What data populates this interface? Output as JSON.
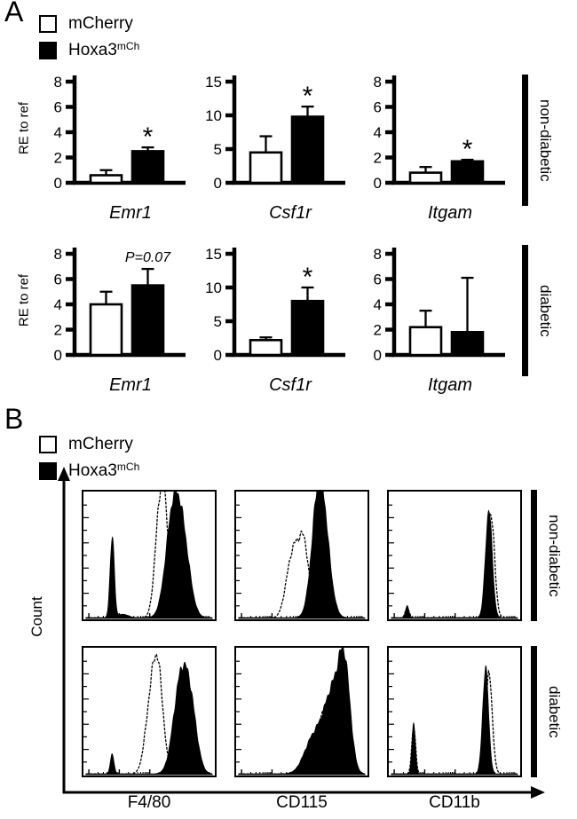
{
  "figure": {
    "panel_a_label": "A",
    "panel_b_label": "B",
    "legend": {
      "mcherry_label": "mCherry",
      "hoxa3_label_base": "Hoxa3",
      "hoxa3_label_sup": "mCh"
    },
    "bar_ylabel": "RE to ref",
    "hist_ylabel": "Count",
    "row_labels": {
      "top": "non-diabetic",
      "bottom": "diabetic"
    },
    "hist_xlabels": [
      "F4/80",
      "CD115",
      "CD11b"
    ],
    "colors": {
      "foreground": "#000000",
      "background": "#ffffff"
    }
  },
  "chart_data": [
    {
      "type": "bar",
      "panel": "A",
      "condition": "non-diabetic",
      "gene": "Emr1",
      "ylabel": "RE to ref",
      "ylim": [
        0,
        8
      ],
      "yticks": [
        0,
        2,
        4,
        6,
        8
      ],
      "series": [
        {
          "name": "mCherry",
          "value": 0.6,
          "error": 0.4
        },
        {
          "name": "Hoxa3mCh",
          "value": 2.5,
          "error": 0.3
        }
      ],
      "significance": "*"
    },
    {
      "type": "bar",
      "panel": "A",
      "condition": "non-diabetic",
      "gene": "Csf1r",
      "ylabel": "RE to ref",
      "ylim": [
        0,
        15
      ],
      "yticks": [
        0,
        5,
        10,
        15
      ],
      "series": [
        {
          "name": "mCherry",
          "value": 4.5,
          "error": 2.4
        },
        {
          "name": "Hoxa3mCh",
          "value": 9.8,
          "error": 1.5
        }
      ],
      "significance": "*"
    },
    {
      "type": "bar",
      "panel": "A",
      "condition": "non-diabetic",
      "gene": "Itgam",
      "ylabel": "RE to ref",
      "ylim": [
        0,
        8
      ],
      "yticks": [
        0,
        2,
        4,
        6,
        8
      ],
      "series": [
        {
          "name": "mCherry",
          "value": 0.8,
          "error": 0.45
        },
        {
          "name": "Hoxa3mCh",
          "value": 1.7,
          "error": 0.12
        }
      ],
      "significance": "*"
    },
    {
      "type": "bar",
      "panel": "A",
      "condition": "diabetic",
      "gene": "Emr1",
      "ylabel": "RE to ref",
      "ylim": [
        0,
        8
      ],
      "yticks": [
        0,
        2,
        4,
        6,
        8
      ],
      "series": [
        {
          "name": "mCherry",
          "value": 4.0,
          "error": 1.0
        },
        {
          "name": "Hoxa3mCh",
          "value": 5.5,
          "error": 1.3
        }
      ],
      "significance": "P=0.07"
    },
    {
      "type": "bar",
      "panel": "A",
      "condition": "diabetic",
      "gene": "Csf1r",
      "ylabel": "RE to ref",
      "ylim": [
        0,
        15
      ],
      "yticks": [
        0,
        5,
        10,
        15
      ],
      "series": [
        {
          "name": "mCherry",
          "value": 2.2,
          "error": 0.4
        },
        {
          "name": "Hoxa3mCh",
          "value": 8.0,
          "error": 2.0
        }
      ],
      "significance": "*"
    },
    {
      "type": "bar",
      "panel": "A",
      "condition": "diabetic",
      "gene": "Itgam",
      "ylabel": "RE to ref",
      "ylim": [
        0,
        8
      ],
      "yticks": [
        0,
        2,
        4,
        6,
        8
      ],
      "series": [
        {
          "name": "mCherry",
          "value": 2.2,
          "error": 1.3
        },
        {
          "name": "Hoxa3mCh",
          "value": 1.8,
          "error": 4.3
        }
      ],
      "significance": ""
    },
    {
      "type": "histogram",
      "panel": "B",
      "condition": "non-diabetic",
      "xlabel": "F4/80",
      "ylabel": "Count",
      "xscale": "log",
      "series": [
        {
          "name": "Hoxa3mCh",
          "style": "filled",
          "peaks": [
            {
              "x": 0.215,
              "h": 0.7,
              "w": 0.016
            },
            {
              "x": 0.3,
              "h": 0.03,
              "w": 0.04
            },
            {
              "x": 0.68,
              "h": 0.8,
              "w": 0.055
            },
            {
              "x": 0.76,
              "h": 0.6,
              "w": 0.055
            }
          ]
        },
        {
          "name": "mCherry",
          "style": "outline",
          "peaks": [
            {
              "x": 0.615,
              "h": 0.92,
              "w": 0.04
            },
            {
              "x": 0.57,
              "h": 0.45,
              "w": 0.035
            }
          ]
        }
      ]
    },
    {
      "type": "histogram",
      "panel": "B",
      "condition": "non-diabetic",
      "xlabel": "CD115",
      "ylabel": "Count",
      "xscale": "log",
      "series": [
        {
          "name": "Hoxa3mCh",
          "style": "filled",
          "peaks": [
            {
              "x": 0.625,
              "h": 0.93,
              "w": 0.05
            },
            {
              "x": 0.68,
              "h": 0.45,
              "w": 0.05
            }
          ]
        },
        {
          "name": "mCherry",
          "style": "outline",
          "peaks": [
            {
              "x": 0.46,
              "h": 0.5,
              "w": 0.045
            },
            {
              "x": 0.525,
              "h": 0.48,
              "w": 0.035
            },
            {
              "x": 0.4,
              "h": 0.25,
              "w": 0.04
            }
          ]
        }
      ]
    },
    {
      "type": "histogram",
      "panel": "B",
      "condition": "non-diabetic",
      "xlabel": "CD11b",
      "ylabel": "Count",
      "xscale": "log",
      "series": [
        {
          "name": "Hoxa3mCh",
          "style": "filled",
          "peaks": [
            {
              "x": 0.135,
              "h": 0.1,
              "w": 0.013
            },
            {
              "x": 0.765,
              "h": 0.92,
              "w": 0.026
            }
          ]
        },
        {
          "name": "mCherry",
          "style": "outline",
          "peaks": [
            {
              "x": 0.135,
              "h": 0.085,
              "w": 0.015
            },
            {
              "x": 0.78,
              "h": 0.9,
              "w": 0.028
            }
          ]
        }
      ]
    },
    {
      "type": "histogram",
      "panel": "B",
      "condition": "diabetic",
      "xlabel": "F4/80",
      "ylabel": "Count",
      "xscale": "log",
      "series": [
        {
          "name": "Hoxa3mCh",
          "style": "filled",
          "peaks": [
            {
              "x": 0.215,
              "h": 0.17,
              "w": 0.014
            },
            {
              "x": 0.74,
              "h": 0.74,
              "w": 0.055
            },
            {
              "x": 0.82,
              "h": 0.5,
              "w": 0.05
            }
          ]
        },
        {
          "name": "mCherry",
          "style": "outline",
          "peaks": [
            {
              "x": 0.565,
              "h": 0.9,
              "w": 0.042
            },
            {
              "x": 0.5,
              "h": 0.4,
              "w": 0.04
            }
          ]
        }
      ]
    },
    {
      "type": "histogram",
      "panel": "B",
      "condition": "diabetic",
      "xlabel": "CD115",
      "ylabel": "Count",
      "xscale": "log",
      "series": [
        {
          "name": "Hoxa3mCh",
          "style": "filled",
          "peaks": [
            {
              "x": 0.83,
              "h": 0.85,
              "w": 0.045
            },
            {
              "x": 0.74,
              "h": 0.6,
              "w": 0.06
            },
            {
              "x": 0.63,
              "h": 0.28,
              "w": 0.07
            },
            {
              "x": 0.55,
              "h": 0.12,
              "w": 0.06
            }
          ]
        },
        {
          "name": "mCherry",
          "style": "outline",
          "peaks": [
            {
              "x": 0.78,
              "h": 0.62,
              "w": 0.045
            },
            {
              "x": 0.69,
              "h": 0.45,
              "w": 0.06
            },
            {
              "x": 0.58,
              "h": 0.2,
              "w": 0.07
            }
          ]
        }
      ]
    },
    {
      "type": "histogram",
      "panel": "B",
      "condition": "diabetic",
      "xlabel": "CD11b",
      "ylabel": "Count",
      "xscale": "log",
      "series": [
        {
          "name": "Hoxa3mCh",
          "style": "filled",
          "peaks": [
            {
              "x": 0.185,
              "h": 0.44,
              "w": 0.013
            },
            {
              "x": 0.74,
              "h": 0.9,
              "w": 0.023
            }
          ]
        },
        {
          "name": "mCherry",
          "style": "outline",
          "peaks": [
            {
              "x": 0.185,
              "h": 0.4,
              "w": 0.015
            },
            {
              "x": 0.765,
              "h": 0.86,
              "w": 0.026
            }
          ]
        }
      ]
    }
  ]
}
